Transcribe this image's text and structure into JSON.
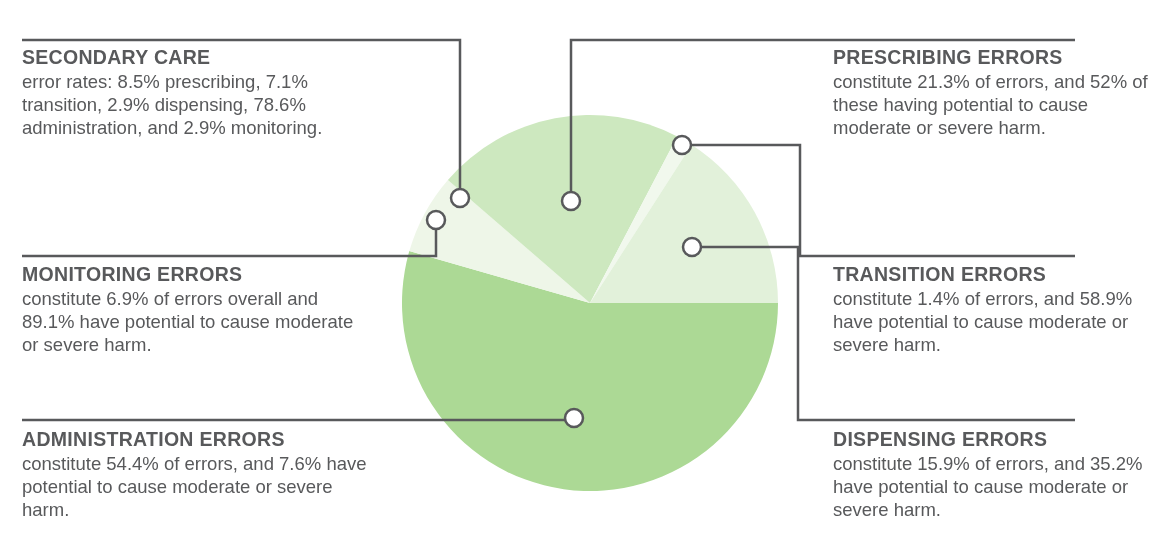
{
  "chart_data": {
    "type": "pie",
    "categories": [
      "ADMINISTRATION ERRORS",
      "MONITORING ERRORS",
      "PRESCRIBING ERRORS",
      "TRANSITION ERRORS",
      "DISPENSING ERRORS"
    ],
    "values": [
      54.4,
      6.9,
      21.3,
      1.4,
      15.9
    ],
    "colors": [
      "#acd995",
      "#eef6e8",
      "#cde8bf",
      "#f1f8ed",
      "#e2f1da"
    ],
    "annotations": [
      "SECONDARY CARE",
      "error rates: 8.5% prescribing, 7.1% transition, 2.9% dispensing, 78.6% administration, and 2.9% monitoring.",
      "constitute 54.4% of errors, and 7.6% have potential to cause moderate or severe harm.",
      "constitute 6.9% of errors overall and 89.1% have potential to cause moderate or severe harm.",
      "constitute 21.3% of errors, and 52% of these having potential to cause moderate or severe harm.",
      "constitute 1.4% of errors, and 58.9% have potential to cause moderate or severe harm.",
      "constitute 15.9% of errors, and 35.2% have potential to cause moderate or severe harm."
    ]
  }
}
